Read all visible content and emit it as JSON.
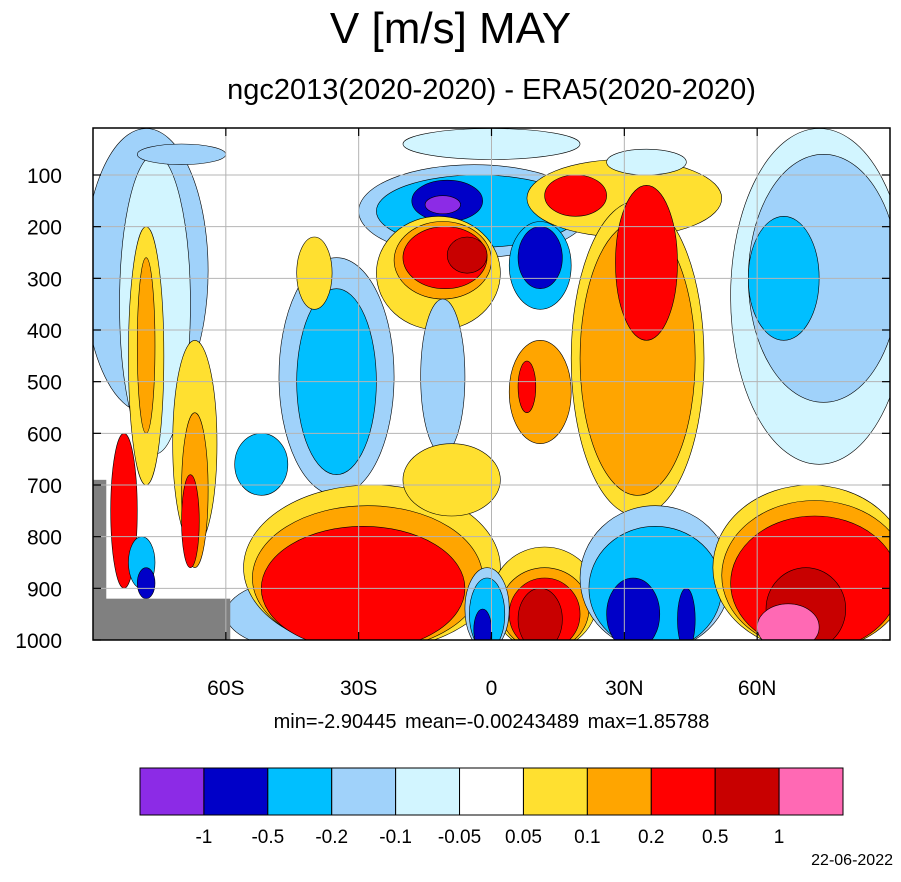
{
  "title": "V [m/s] MAY",
  "subtitle": "ngc2013(2020-2020) - ERA5(2020-2020)",
  "stats": "min=-2.90445   mean=-0.00243489   max=1.85788",
  "date": "22-06-2022",
  "chart_data": {
    "type": "heatmap",
    "title": "V [m/s] MAY",
    "subtitle": "ngc2013(2020-2020) - ERA5(2020-2020)",
    "xlabel": "",
    "ylabel": "",
    "xlim": [
      -90,
      90
    ],
    "ylim": [
      1000,
      10
    ],
    "y_inverted": true,
    "grid": true,
    "x_ticks": [
      {
        "value": -60,
        "label": "60S"
      },
      {
        "value": -30,
        "label": "30S"
      },
      {
        "value": 0,
        "label": "0"
      },
      {
        "value": 30,
        "label": "30N"
      },
      {
        "value": 60,
        "label": "60N"
      }
    ],
    "y_ticks": [
      {
        "value": 100,
        "label": "100"
      },
      {
        "value": 200,
        "label": "200"
      },
      {
        "value": 300,
        "label": "300"
      },
      {
        "value": 400,
        "label": "400"
      },
      {
        "value": 500,
        "label": "500"
      },
      {
        "value": 600,
        "label": "600"
      },
      {
        "value": 700,
        "label": "700"
      },
      {
        "value": 800,
        "label": "800"
      },
      {
        "value": 900,
        "label": "900"
      },
      {
        "value": 1000,
        "label": "1000"
      }
    ],
    "levels": [
      -1,
      -0.5,
      -0.2,
      -0.1,
      -0.05,
      0.05,
      0.1,
      0.2,
      0.5,
      1
    ],
    "level_labels": [
      "-1",
      "-0.5",
      "-0.2",
      "-0.1",
      "-0.05",
      "0.05",
      "0.1",
      "0.2",
      "0.5",
      "1"
    ],
    "colors": [
      "#8c2be6",
      "#0000c8",
      "#00bfff",
      "#a0d2fa",
      "#d2f5ff",
      "#ffffff",
      "#ffe030",
      "#ffa500",
      "#ff0000",
      "#c80000",
      "#ff69b4"
    ],
    "legend_position": "bottom",
    "min": -2.90445,
    "mean": -0.00243489,
    "max": 1.85788,
    "regions": [
      {
        "class": 3,
        "lat": [
          -92,
          -64
        ],
        "p": [
          10,
          560
        ]
      },
      {
        "class": 4,
        "lat": [
          -84,
          -68
        ],
        "p": [
          60,
          640
        ]
      },
      {
        "class": 3,
        "lat": [
          -48,
          -22
        ],
        "p": [
          260,
          720
        ]
      },
      {
        "class": 2,
        "lat": [
          -44,
          -26
        ],
        "p": [
          320,
          680
        ]
      },
      {
        "class": 2,
        "lat": [
          -58,
          -46
        ],
        "p": [
          600,
          720
        ]
      },
      {
        "class": 3,
        "lat": [
          -80,
          -60
        ],
        "p": [
          40,
          80
        ]
      },
      {
        "class": 4,
        "lat": [
          -20,
          20
        ],
        "p": [
          10,
          70
        ]
      },
      {
        "class": 6,
        "lat": [
          -44,
          -36
        ],
        "p": [
          220,
          360
        ]
      },
      {
        "class": 3,
        "lat": [
          -30,
          22
        ],
        "p": [
          80,
          260
        ]
      },
      {
        "class": 2,
        "lat": [
          -26,
          20
        ],
        "p": [
          100,
          240
        ]
      },
      {
        "class": 1,
        "lat": [
          -18,
          -2
        ],
        "p": [
          110,
          190
        ]
      },
      {
        "class": 0,
        "lat": [
          -15,
          -7
        ],
        "p": [
          140,
          175
        ]
      },
      {
        "class": 2,
        "lat": [
          4,
          18
        ],
        "p": [
          190,
          360
        ]
      },
      {
        "class": 1,
        "lat": [
          6,
          16
        ],
        "p": [
          200,
          320
        ]
      },
      {
        "class": 6,
        "lat": [
          -26,
          2
        ],
        "p": [
          180,
          400
        ]
      },
      {
        "class": 7,
        "lat": [
          -22,
          0
        ],
        "p": [
          190,
          340
        ]
      },
      {
        "class": 8,
        "lat": [
          -20,
          -1
        ],
        "p": [
          200,
          320
        ]
      },
      {
        "class": 9,
        "lat": [
          -10,
          -1
        ],
        "p": [
          220,
          290
        ]
      },
      {
        "class": 3,
        "lat": [
          -16,
          -6
        ],
        "p": [
          340,
          640
        ]
      },
      {
        "class": 7,
        "lat": [
          4,
          18
        ],
        "p": [
          420,
          620
        ]
      },
      {
        "class": 8,
        "lat": [
          6,
          10
        ],
        "p": [
          460,
          560
        ]
      },
      {
        "class": 6,
        "lat": [
          8,
          52
        ],
        "p": [
          70,
          220
        ]
      },
      {
        "class": 8,
        "lat": [
          12,
          26
        ],
        "p": [
          100,
          180
        ]
      },
      {
        "class": 6,
        "lat": [
          18,
          48
        ],
        "p": [
          150,
          760
        ]
      },
      {
        "class": 7,
        "lat": [
          20,
          46
        ],
        "p": [
          190,
          720
        ]
      },
      {
        "class": 8,
        "lat": [
          28,
          42
        ],
        "p": [
          120,
          420
        ]
      },
      {
        "class": 4,
        "lat": [
          26,
          44
        ],
        "p": [
          50,
          100
        ]
      },
      {
        "class": 4,
        "lat": [
          54,
          94
        ],
        "p": [
          10,
          660
        ]
      },
      {
        "class": 3,
        "lat": [
          58,
          92
        ],
        "p": [
          60,
          540
        ]
      },
      {
        "class": 2,
        "lat": [
          58,
          74
        ],
        "p": [
          180,
          420
        ]
      },
      {
        "class": 3,
        "lat": [
          -60,
          -24
        ],
        "p": [
          880,
          1020
        ]
      },
      {
        "class": 6,
        "lat": [
          -56,
          2
        ],
        "p": [
          700,
          1020
        ]
      },
      {
        "class": 7,
        "lat": [
          -54,
          -2
        ],
        "p": [
          740,
          1020
        ]
      },
      {
        "class": 8,
        "lat": [
          -52,
          -6
        ],
        "p": [
          780,
          1020
        ]
      },
      {
        "class": 6,
        "lat": [
          -20,
          2
        ],
        "p": [
          620,
          760
        ]
      },
      {
        "class": 6,
        "lat": [
          0,
          24
        ],
        "p": [
          820,
          1020
        ]
      },
      {
        "class": 7,
        "lat": [
          2,
          22
        ],
        "p": [
          860,
          1020
        ]
      },
      {
        "class": 8,
        "lat": [
          4,
          20
        ],
        "p": [
          880,
          1020
        ]
      },
      {
        "class": 9,
        "lat": [
          6,
          16
        ],
        "p": [
          900,
          1020
        ]
      },
      {
        "class": 3,
        "lat": [
          -6,
          4
        ],
        "p": [
          860,
          1020
        ]
      },
      {
        "class": 2,
        "lat": [
          -5,
          3
        ],
        "p": [
          880,
          1020
        ]
      },
      {
        "class": 1,
        "lat": [
          -4,
          0
        ],
        "p": [
          940,
          1020
        ]
      },
      {
        "class": 3,
        "lat": [
          20,
          54
        ],
        "p": [
          740,
          1020
        ]
      },
      {
        "class": 2,
        "lat": [
          22,
          52
        ],
        "p": [
          780,
          1020
        ]
      },
      {
        "class": 1,
        "lat": [
          26,
          38
        ],
        "p": [
          880,
          1020
        ]
      },
      {
        "class": 1,
        "lat": [
          42,
          46
        ],
        "p": [
          900,
          1020
        ]
      },
      {
        "class": 6,
        "lat": [
          50,
          94
        ],
        "p": [
          700,
          1020
        ]
      },
      {
        "class": 7,
        "lat": [
          52,
          94
        ],
        "p": [
          730,
          1020
        ]
      },
      {
        "class": 8,
        "lat": [
          54,
          92
        ],
        "p": [
          760,
          1020
        ]
      },
      {
        "class": 9,
        "lat": [
          62,
          80
        ],
        "p": [
          860,
          1020
        ]
      },
      {
        "class": 10,
        "lat": [
          60,
          74
        ],
        "p": [
          930,
          1020
        ]
      },
      {
        "class": 6,
        "lat": [
          -82,
          -74
        ],
        "p": [
          200,
          700
        ]
      },
      {
        "class": 7,
        "lat": [
          -80,
          -76
        ],
        "p": [
          260,
          600
        ]
      },
      {
        "class": 6,
        "lat": [
          -72,
          -62
        ],
        "p": [
          420,
          820
        ]
      },
      {
        "class": 7,
        "lat": [
          -70,
          -64
        ],
        "p": [
          560,
          860
        ]
      },
      {
        "class": 8,
        "lat": [
          -70,
          -66
        ],
        "p": [
          680,
          860
        ]
      },
      {
        "class": 8,
        "lat": [
          -86,
          -80
        ],
        "p": [
          600,
          900
        ]
      },
      {
        "class": 2,
        "lat": [
          -82,
          -76
        ],
        "p": [
          800,
          900
        ]
      },
      {
        "class": 1,
        "lat": [
          -80,
          -76
        ],
        "p": [
          860,
          920
        ]
      }
    ],
    "masked_regions": [
      {
        "lat": [
          -92,
          -87
        ],
        "p": [
          690,
          1020
        ]
      },
      {
        "lat": [
          -92,
          -59
        ],
        "p": [
          920,
          1020
        ]
      }
    ]
  }
}
